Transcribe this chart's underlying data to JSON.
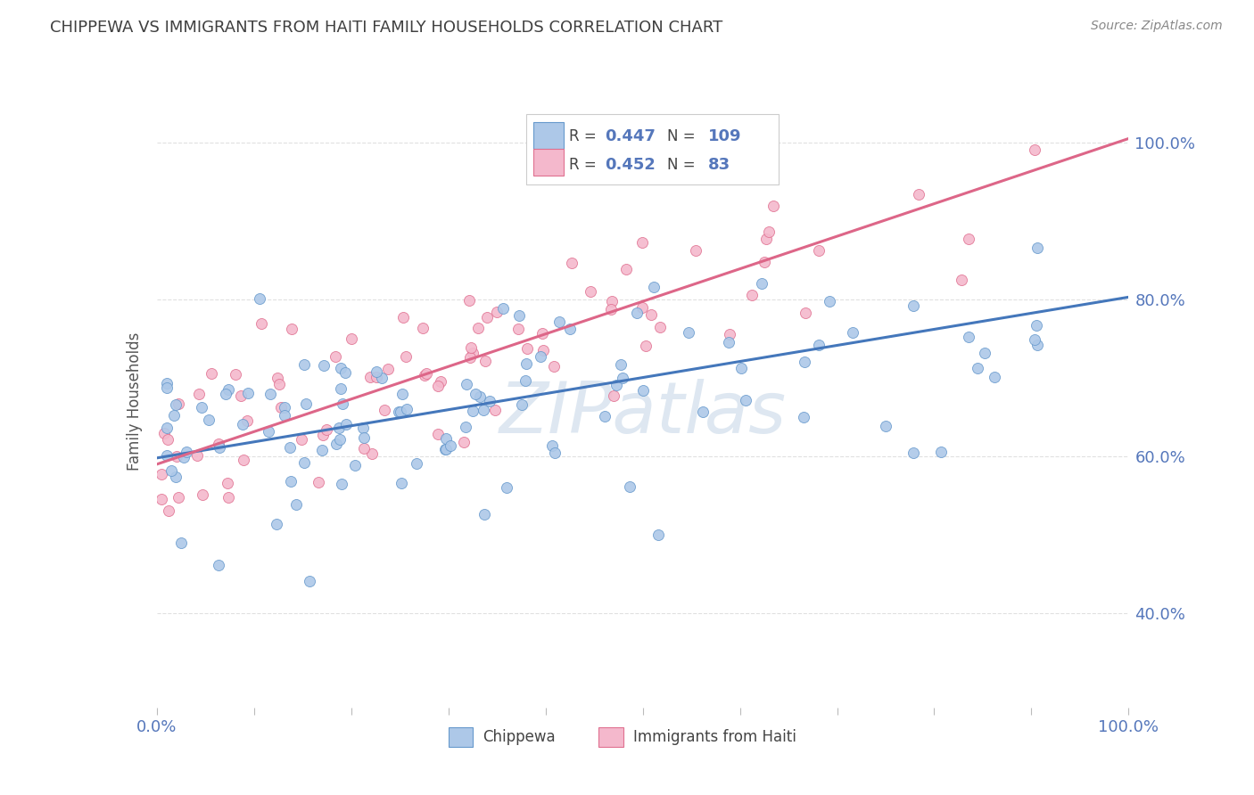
{
  "title": "CHIPPEWA VS IMMIGRANTS FROM HAITI FAMILY HOUSEHOLDS CORRELATION CHART",
  "source": "Source: ZipAtlas.com",
  "ylabel": "Family Households",
  "yaxis_ticks_labels": [
    "40.0%",
    "60.0%",
    "80.0%",
    "100.0%"
  ],
  "yaxis_tick_vals": [
    0.4,
    0.6,
    0.8,
    1.0
  ],
  "xlim": [
    0.0,
    1.0
  ],
  "ylim": [
    0.28,
    1.06
  ],
  "chip_R": "0.447",
  "chip_N": "109",
  "haiti_R": "0.452",
  "haiti_N": "83",
  "blue_scatter_color": "#adc8e8",
  "blue_edge_color": "#6699cc",
  "pink_scatter_color": "#f4b8cc",
  "pink_edge_color": "#e07090",
  "blue_line_color": "#4477bb",
  "pink_line_color": "#dd6688",
  "grid_color": "#dddddd",
  "background_color": "#ffffff",
  "watermark_color": "#c8d8e8",
  "tick_label_color": "#5577bb",
  "title_color": "#404040",
  "source_color": "#888888"
}
